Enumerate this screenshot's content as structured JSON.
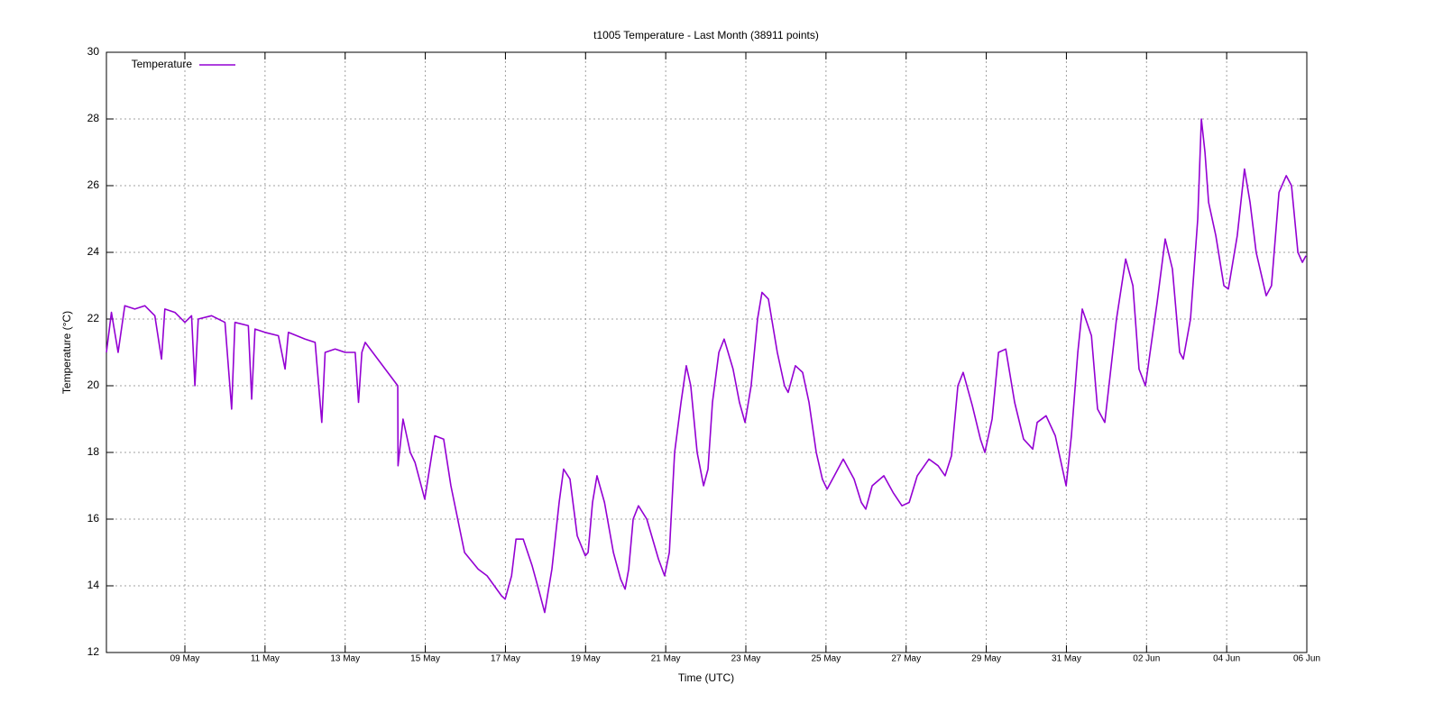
{
  "chart_data": {
    "type": "line",
    "title": "t1005 Temperature - Last Month (38911 points)",
    "xlabel": "Time (UTC)",
    "ylabel": "Temperature (°C)",
    "legend": "left top",
    "grid": true,
    "ylim": [
      12,
      30
    ],
    "yticks": [
      12,
      14,
      16,
      18,
      20,
      22,
      24,
      26,
      28,
      30
    ],
    "xlim": [
      "07 May 01:00",
      "06 Jun 00:00"
    ],
    "xticks": [
      "09 May",
      "11 May",
      "13 May",
      "15 May",
      "17 May",
      "19 May",
      "21 May",
      "23 May",
      "25 May",
      "27 May",
      "29 May",
      "31 May",
      "02 Jun",
      "04 Jun",
      "06 Jun"
    ],
    "x": [
      "07 May 01:00",
      "07 May 04:00",
      "07 May 08:00",
      "07 May 12:00",
      "07 May 18:00",
      "08 May 00:00",
      "08 May 06:00",
      "08 May 10:00",
      "08 May 12:00",
      "08 May 18:00",
      "09 May 00:00",
      "09 May 04:00",
      "09 May 06:00",
      "09 May 08:00",
      "09 May 16:00",
      "10 May 00:00",
      "10 May 04:00",
      "10 May 06:00",
      "10 May 14:00",
      "10 May 16:00",
      "10 May 18:00",
      "11 May 00:00",
      "11 May 08:00",
      "11 May 12:00",
      "11 May 14:00",
      "12 May 00:00",
      "12 May 06:00",
      "12 May 10:00",
      "12 May 12:00",
      "12 May 18:00",
      "13 May 00:00",
      "13 May 06:00",
      "13 May 08:00",
      "13 May 10:00",
      "13 May 12:00",
      "14 May 07:30",
      "14 May 07:40",
      "14 May 10:40",
      "14 May 15:00",
      "14 May 17:50",
      "14 May 23:40",
      "15 May 05:40",
      "15 May 11:00",
      "15 May 15:20",
      "15 May 23:30",
      "16 May 07:40",
      "16 May 13:00",
      "16 May 17:20",
      "16 May 21:40",
      "16 May 23:50",
      "17 May 03:40",
      "17 May 06:20",
      "17 May 10:40",
      "17 May 16:00",
      "17 May 19:50",
      "17 May 23:30",
      "18 May 03:50",
      "18 May 08:10",
      "18 May 10:50",
      "18 May 14:40",
      "18 May 19:00",
      "18 May 23:50",
      "19 May 01:30",
      "19 May 04:10",
      "19 May 06:50",
      "19 May 11:20",
      "19 May 16:40",
      "19 May 21:00",
      "19 May 23:40",
      "20 May 01:50",
      "20 May 04:30",
      "20 May 07:40",
      "20 May 12:40",
      "20 May 19:40",
      "20 May 23:20",
      "21 May 02:10",
      "21 May 05:20",
      "21 May 09:10",
      "21 May 12:20",
      "21 May 15:00",
      "21 May 18:50",
      "21 May 22:40",
      "22 May 01:20",
      "22 May 04:00",
      "22 May 07:50",
      "22 May 11:00",
      "22 May 16:20",
      "22 May 20:10",
      "22 May 23:30",
      "23 May 03:10",
      "23 May 07:00",
      "23 May 09:40",
      "23 May 13:30",
      "23 May 18:50",
      "23 May 23:10",
      "24 May 01:20",
      "24 May 05:40",
      "24 May 10:00",
      "24 May 13:50",
      "24 May 18:10",
      "24 May 21:50",
      "25 May 00:40",
      "25 May 05:00",
      "25 May 10:20",
      "25 May 16:50",
      "25 May 21:10",
      "25 May 23:50",
      "26 May 03:40",
      "26 May 10:40",
      "26 May 16:10",
      "26 May 21:30",
      "27 May 01:50",
      "27 May 06:40",
      "27 May 13:40",
      "27 May 19:10",
      "27 May 23:20",
      "28 May 03:10",
      "28 May 07:00",
      "28 May 10:10",
      "28 May 15:40",
      "28 May 20:30",
      "28 May 23:10",
      "29 May 03:30",
      "29 May 07:20",
      "29 May 11:40",
      "29 May 17:00",
      "29 May 22:20",
      "30 May 03:50",
      "30 May 06:30",
      "30 May 11:50",
      "30 May 17:20",
      "30 May 23:50",
      "31 May 03:00",
      "31 May 06:50",
      "31 May 09:30",
      "31 May 15:00",
      "31 May 18:40",
      "31 May 23:00",
      "01 Jun 06:00",
      "01 Jun 11:30",
      "01 Jun 15:50",
      "01 Jun 19:30",
      "01 Jun 23:20",
      "02 Jun 06:20",
      "02 Jun 11:10",
      "02 Jun 15:30",
      "02 Jun 19:50",
      "02 Jun 22:00",
      "03 Jun 02:20",
      "03 Jun 06:40",
      "03 Jun 08:50",
      "03 Jun 11:00",
      "03 Jun 13:10",
      "03 Jun 17:30",
      "03 Jun 22:20",
      "04 Jun 01:00",
      "04 Jun 06:20",
      "04 Jun 10:40",
      "04 Jun 14:00",
      "04 Jun 17:40",
      "04 Jun 23:40",
      "05 Jun 02:50",
      "05 Jun 07:20",
      "05 Jun 11:40",
      "05 Jun 14:50",
      "05 Jun 18:40",
      "05 Jun 21:20",
      "05 Jun 23:30"
    ],
    "series": [
      {
        "name": "Temperature",
        "color": "#9400d3",
        "values": [
          21.0,
          22.2,
          21.0,
          22.4,
          22.3,
          22.4,
          22.1,
          20.8,
          22.3,
          22.2,
          21.9,
          22.1,
          20.0,
          22.0,
          22.1,
          21.9,
          19.3,
          21.9,
          21.8,
          19.6,
          21.7,
          21.6,
          21.5,
          20.5,
          21.6,
          21.4,
          21.3,
          18.9,
          21.0,
          21.1,
          21.0,
          21.0,
          19.5,
          21.0,
          21.3,
          20.0,
          17.6,
          19.0,
          18.0,
          17.7,
          16.6,
          18.5,
          18.4,
          17.0,
          15.0,
          14.5,
          14.3,
          14.0,
          13.7,
          13.6,
          14.3,
          15.4,
          15.4,
          14.6,
          13.9,
          13.2,
          14.5,
          16.5,
          17.5,
          17.2,
          15.5,
          14.9,
          15.0,
          16.5,
          17.3,
          16.5,
          15.0,
          14.2,
          13.9,
          14.5,
          16.0,
          16.4,
          16.0,
          14.8,
          14.3,
          15.0,
          18.0,
          19.5,
          20.6,
          20.0,
          18.0,
          17.0,
          17.5,
          19.5,
          21.0,
          21.4,
          20.5,
          19.5,
          18.9,
          20.0,
          22.0,
          22.8,
          22.6,
          21.0,
          20.0,
          19.8,
          20.6,
          20.4,
          19.5,
          18.0,
          17.2,
          16.9,
          17.3,
          17.8,
          17.2,
          16.5,
          16.3,
          17.0,
          17.3,
          16.8,
          16.4,
          16.5,
          17.3,
          17.8,
          17.6,
          17.3,
          17.9,
          20.0,
          20.4,
          19.4,
          18.4,
          18.0,
          19.0,
          21.0,
          21.1,
          19.5,
          18.4,
          18.1,
          18.9,
          19.1,
          18.5,
          17.0,
          18.5,
          21.0,
          22.3,
          21.5,
          19.3,
          18.9,
          22.0,
          23.8,
          23.0,
          20.5,
          20.0,
          22.5,
          24.4,
          23.5,
          21.0,
          20.8,
          22.0,
          25.0,
          28.0,
          27.0,
          25.5,
          24.5,
          23.0,
          22.9,
          24.5,
          26.5,
          25.5,
          24.0,
          22.7,
          23.0,
          25.8,
          26.3,
          26.0,
          24.0,
          23.7,
          23.9
        ]
      }
    ]
  }
}
